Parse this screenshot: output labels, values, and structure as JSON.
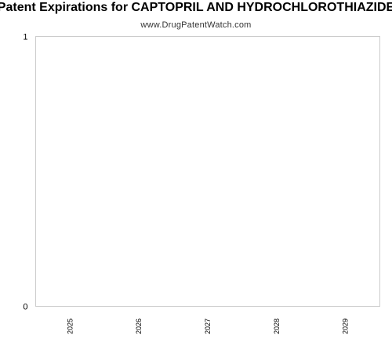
{
  "chart_data": {
    "type": "bar",
    "title": "Patent Expirations for CAPTOPRIL AND HYDROCHLOROTHIAZIDE",
    "subtitle": "www.DrugPatentWatch.com",
    "categories": [
      "2025",
      "2026",
      "2027",
      "2028",
      "2029"
    ],
    "values": [
      0,
      0,
      0,
      0,
      0
    ],
    "ylim": [
      0,
      1
    ],
    "yticks": [
      "0",
      "1"
    ],
    "xlabel": "",
    "ylabel": "",
    "grid": false,
    "legend": "none",
    "colors": {
      "axis": "#cccccc",
      "bar": "#4f81bd",
      "text": "#000000"
    }
  }
}
